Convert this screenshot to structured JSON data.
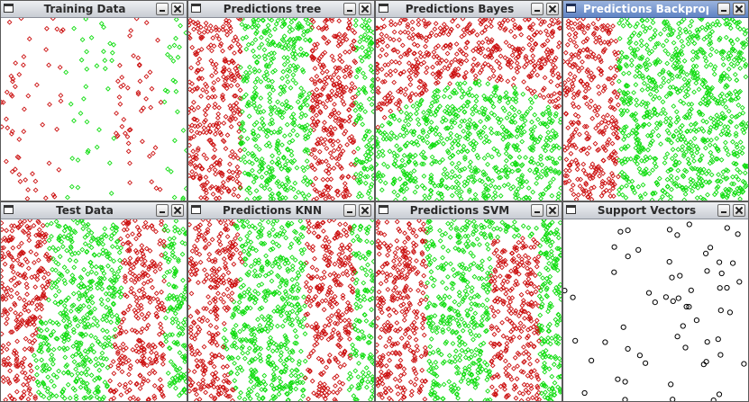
{
  "windows": [
    {
      "id": "training-data",
      "title": "Training Data",
      "active": false,
      "plot": "scatter-sparse"
    },
    {
      "id": "predictions-tree",
      "title": "Predictions tree",
      "active": false,
      "plot": "stripes-tree"
    },
    {
      "id": "predictions-bayes",
      "title": "Predictions Bayes",
      "active": false,
      "plot": "bayes"
    },
    {
      "id": "predictions-backpropagation",
      "title": "Predictions Backpropagat",
      "active": true,
      "plot": "stripe-single"
    },
    {
      "id": "test-data",
      "title": "Test Data",
      "active": false,
      "plot": "stripes-test"
    },
    {
      "id": "predictions-knn",
      "title": "Predictions KNN",
      "active": false,
      "plot": "stripes-knn"
    },
    {
      "id": "predictions-svm",
      "title": "Predictions SVM",
      "active": false,
      "plot": "stripes-svm"
    },
    {
      "id": "support-vectors",
      "title": "Support Vectors",
      "active": false,
      "plot": "support-vectors"
    }
  ],
  "colors": {
    "class_a": "#cc1111",
    "class_b": "#11dd11",
    "support_vector": "#000000",
    "active_titlebar": "#6b8ccc"
  },
  "icons": {
    "window": "window-icon",
    "minimize": "minimize-icon",
    "close": "close-icon"
  }
}
